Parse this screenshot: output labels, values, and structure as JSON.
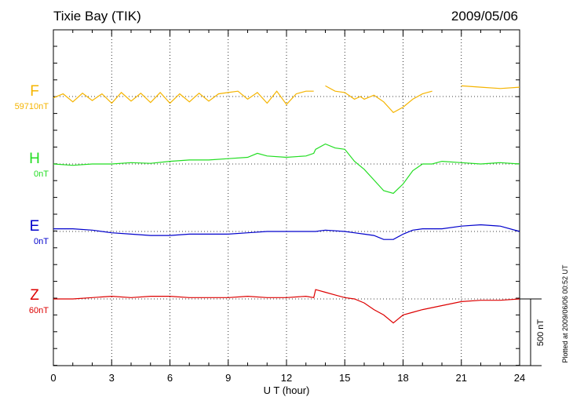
{
  "chart_data": {
    "type": "line",
    "title": "Tixie Bay (TIK)",
    "date": "2009/05/06",
    "xlabel": "U T (hour)",
    "xlim": [
      0,
      24
    ],
    "xticks": [
      "0",
      "3",
      "6",
      "9",
      "12",
      "15",
      "18",
      "21",
      "24"
    ],
    "grid": true,
    "scale_bar_label": "500 nT",
    "plotted_note": "Plotted at 2009/06/06 00:52 UT",
    "series": [
      {
        "name": "F",
        "baseline": "59710nT",
        "color": "#f5b400",
        "x": [
          0.0,
          0.5,
          1.0,
          1.5,
          2.0,
          2.5,
          3.0,
          3.5,
          4.0,
          4.5,
          5.0,
          5.5,
          6.0,
          6.5,
          7.0,
          7.5,
          8.0,
          8.5,
          9.0,
          9.5,
          10.0,
          10.5,
          11.0,
          11.5,
          12.0,
          12.5,
          13.0,
          13.4,
          13.5,
          14.0,
          14.5,
          15.0,
          15.5,
          15.8,
          16.0,
          16.5,
          17.0,
          17.5,
          18.0,
          18.5,
          19.0,
          19.5,
          19.6,
          21.0,
          22.0,
          23.0,
          24.0
        ],
        "values": [
          -10,
          20,
          -40,
          25,
          -30,
          20,
          -50,
          30,
          -35,
          25,
          -45,
          30,
          -50,
          20,
          -40,
          25,
          -35,
          20,
          30,
          40,
          -20,
          30,
          -50,
          40,
          -60,
          20,
          40,
          40,
          null,
          80,
          40,
          30,
          -20,
          0,
          -20,
          10,
          -40,
          -120,
          -80,
          -20,
          20,
          40,
          null,
          80,
          70,
          60,
          70
        ]
      },
      {
        "name": "H",
        "baseline": "0nT",
        "color": "#22dd22",
        "x": [
          0.0,
          1.0,
          2.0,
          3.0,
          4.0,
          5.0,
          6.0,
          7.0,
          8.0,
          9.0,
          10.0,
          10.5,
          11.0,
          12.0,
          13.0,
          13.4,
          13.5,
          14.0,
          14.5,
          15.0,
          15.5,
          16.0,
          16.5,
          17.0,
          17.5,
          18.0,
          18.5,
          19.0,
          19.5,
          20.0,
          21.0,
          22.0,
          23.0,
          24.0
        ],
        "values": [
          0,
          -10,
          0,
          0,
          10,
          5,
          20,
          30,
          30,
          40,
          50,
          80,
          60,
          50,
          60,
          80,
          110,
          150,
          120,
          110,
          20,
          -40,
          -120,
          -200,
          -220,
          -150,
          -50,
          0,
          0,
          20,
          10,
          0,
          10,
          0
        ]
      },
      {
        "name": "E",
        "baseline": "0nT",
        "color": "#0000cc",
        "x": [
          0.0,
          1.0,
          2.0,
          3.0,
          4.0,
          5.0,
          6.0,
          7.0,
          8.0,
          9.0,
          10.0,
          11.0,
          12.0,
          13.0,
          13.4,
          13.5,
          14.0,
          15.0,
          15.5,
          16.0,
          16.5,
          17.0,
          17.5,
          18.0,
          18.5,
          19.0,
          20.0,
          21.0,
          22.0,
          23.0,
          24.0
        ],
        "values": [
          20,
          20,
          10,
          -10,
          -20,
          -30,
          -30,
          -20,
          -20,
          -20,
          -10,
          0,
          0,
          0,
          0,
          0,
          10,
          0,
          -10,
          -20,
          -30,
          -60,
          -60,
          -20,
          10,
          20,
          20,
          40,
          50,
          40,
          0
        ]
      },
      {
        "name": "Z",
        "baseline": "60nT",
        "color": "#dd0000",
        "x": [
          0.0,
          1.0,
          2.0,
          3.0,
          4.0,
          5.0,
          6.0,
          7.0,
          8.0,
          9.0,
          10.0,
          11.0,
          12.0,
          13.0,
          13.4,
          13.5,
          14.0,
          14.5,
          15.0,
          15.5,
          16.0,
          16.5,
          17.0,
          17.5,
          18.0,
          18.5,
          19.0,
          20.0,
          21.0,
          22.0,
          23.0,
          24.0
        ],
        "values": [
          0,
          0,
          10,
          20,
          10,
          20,
          20,
          10,
          10,
          10,
          20,
          10,
          10,
          20,
          10,
          70,
          50,
          30,
          10,
          0,
          -30,
          -80,
          -120,
          -180,
          -120,
          -100,
          -80,
          -50,
          -20,
          -10,
          -10,
          0
        ]
      }
    ]
  }
}
